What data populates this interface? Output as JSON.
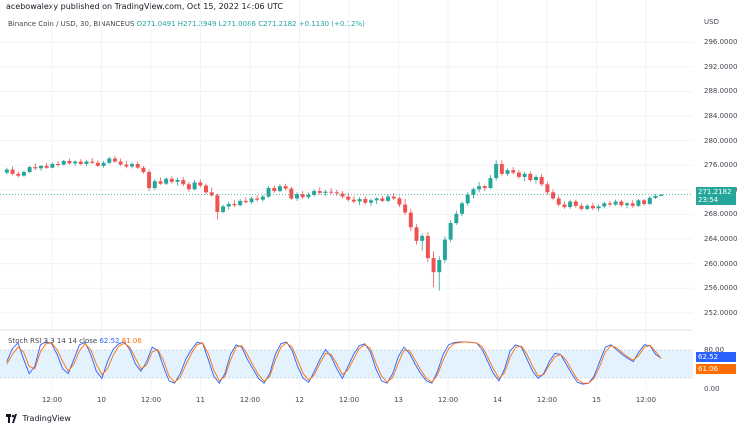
{
  "header": {
    "published_note": "acebowalexy published on TradingView.com, Oct 15, 2022 14:06 UTC",
    "symbol": "Binance Coin / USD, 30, BINANCEUS",
    "ohlc": "O271.0491 H271.2949 L271.0086 C271.2182 +0.1130 (+0.12%)"
  },
  "price_axis": {
    "currency": "USD",
    "ticks": [
      "296.0000",
      "292.0000",
      "288.0000",
      "284.0000",
      "280.0000",
      "276.0000",
      "272.0000",
      "268.0000",
      "264.0000",
      "260.0000",
      "256.0000",
      "252.0000"
    ],
    "current_price": "271.2182",
    "countdown": "23:54",
    "colors": {
      "badge": "#26a69a"
    }
  },
  "time_axis": {
    "labels": [
      "12:00",
      "10",
      "12:00",
      "11",
      "12:00",
      "12",
      "12:00",
      "13",
      "12:00",
      "14",
      "12:00",
      "15",
      "12:00"
    ]
  },
  "stoch": {
    "label": "Stoch RSI 3 3 14 14 close",
    "k_value": "62.52",
    "d_value": "61.06",
    "ticks": [
      "80.00",
      "0.00"
    ],
    "colors": {
      "k": "#2962ff",
      "d": "#ff6d00",
      "band": "#e3f2fd"
    }
  },
  "footer": {
    "brand": "TradingView",
    "logo_icon": "tradingview-logo-icon"
  },
  "chart_data": [
    {
      "type": "candlestick",
      "ylim": [
        250.5,
        298
      ],
      "candles": [
        [
          274.8,
          275.6,
          274.5,
          275.3
        ],
        [
          275.3,
          275.8,
          274.4,
          274.6
        ],
        [
          274.6,
          275.0,
          274.0,
          274.3
        ],
        [
          274.3,
          275.1,
          274.1,
          274.9
        ],
        [
          274.9,
          275.9,
          274.7,
          275.7
        ],
        [
          275.7,
          276.3,
          275.2,
          275.5
        ],
        [
          275.5,
          276.0,
          275.1,
          275.9
        ],
        [
          275.9,
          276.4,
          275.4,
          275.6
        ],
        [
          275.6,
          276.5,
          275.5,
          276.2
        ],
        [
          276.2,
          276.7,
          275.8,
          276.1
        ],
        [
          276.1,
          276.9,
          276.0,
          276.7
        ],
        [
          276.7,
          277.1,
          276.1,
          276.3
        ],
        [
          276.3,
          276.8,
          275.9,
          276.6
        ],
        [
          276.6,
          277.0,
          276.0,
          276.2
        ],
        [
          276.2,
          276.9,
          275.9,
          276.6
        ],
        [
          276.6,
          277.2,
          276.2,
          276.4
        ],
        [
          276.4,
          276.8,
          275.7,
          275.9
        ],
        [
          275.9,
          276.7,
          275.6,
          276.4
        ],
        [
          276.4,
          277.4,
          276.2,
          277.1
        ],
        [
          277.1,
          277.5,
          276.4,
          276.6
        ],
        [
          276.6,
          277.1,
          275.9,
          276.1
        ],
        [
          276.1,
          276.7,
          275.5,
          275.8
        ],
        [
          275.8,
          276.5,
          275.5,
          276.2
        ],
        [
          276.2,
          276.6,
          275.4,
          275.6
        ],
        [
          275.6,
          275.9,
          274.6,
          274.9
        ],
        [
          274.9,
          275.3,
          271.8,
          272.3
        ],
        [
          272.3,
          273.7,
          272.0,
          273.4
        ],
        [
          273.4,
          274.0,
          272.8,
          273.0
        ],
        [
          273.0,
          274.1,
          272.8,
          273.8
        ],
        [
          273.8,
          274.2,
          273.0,
          273.3
        ],
        [
          273.3,
          274.0,
          272.7,
          273.6
        ],
        [
          273.6,
          274.1,
          272.6,
          272.9
        ],
        [
          272.9,
          273.3,
          271.7,
          272.1
        ],
        [
          272.1,
          273.6,
          271.9,
          273.2
        ],
        [
          273.2,
          273.7,
          272.4,
          272.7
        ],
        [
          272.7,
          273.0,
          271.3,
          271.6
        ],
        [
          271.6,
          272.4,
          270.9,
          271.1
        ],
        [
          271.1,
          271.4,
          267.2,
          268.4
        ],
        [
          268.4,
          269.6,
          268.2,
          269.3
        ],
        [
          269.3,
          270.1,
          268.8,
          269.7
        ],
        [
          269.7,
          270.3,
          269.2,
          269.5
        ],
        [
          269.5,
          270.5,
          269.3,
          270.2
        ],
        [
          270.2,
          270.8,
          269.8,
          270.0
        ],
        [
          270.0,
          270.9,
          269.7,
          270.6
        ],
        [
          270.6,
          271.1,
          270.1,
          270.4
        ],
        [
          270.4,
          271.2,
          270.1,
          270.9
        ],
        [
          270.9,
          272.6,
          270.7,
          272.3
        ],
        [
          272.3,
          272.7,
          271.5,
          271.8
        ],
        [
          271.8,
          272.9,
          271.6,
          272.6
        ],
        [
          272.6,
          273.0,
          271.9,
          272.2
        ],
        [
          272.2,
          272.5,
          270.3,
          270.6
        ],
        [
          270.6,
          271.6,
          270.2,
          271.3
        ],
        [
          271.3,
          271.8,
          270.5,
          270.8
        ],
        [
          270.8,
          271.6,
          270.5,
          271.2
        ],
        [
          271.2,
          272.1,
          270.9,
          271.8
        ],
        [
          271.8,
          272.4,
          271.2,
          271.5
        ],
        [
          271.5,
          272.0,
          271.0,
          271.7
        ],
        [
          271.7,
          272.3,
          271.3,
          271.6
        ],
        [
          271.6,
          272.0,
          271.0,
          271.4
        ],
        [
          271.4,
          271.8,
          270.6,
          270.9
        ],
        [
          270.9,
          271.5,
          270.1,
          270.4
        ],
        [
          270.4,
          271.0,
          269.8,
          270.1
        ],
        [
          270.1,
          270.8,
          269.5,
          270.5
        ],
        [
          270.5,
          271.0,
          269.6,
          269.9
        ],
        [
          269.9,
          270.6,
          269.4,
          270.3
        ],
        [
          270.3,
          270.8,
          269.7,
          270.6
        ],
        [
          270.6,
          271.0,
          270.0,
          270.2
        ],
        [
          270.2,
          271.3,
          270.0,
          270.9
        ],
        [
          270.9,
          271.5,
          270.3,
          270.6
        ],
        [
          270.6,
          270.9,
          269.2,
          269.6
        ],
        [
          269.6,
          270.5,
          267.9,
          268.3
        ],
        [
          268.3,
          268.9,
          265.3,
          265.9
        ],
        [
          265.9,
          266.4,
          263.1,
          263.7
        ],
        [
          263.7,
          264.9,
          262.1,
          264.5
        ],
        [
          264.5,
          265.1,
          260.2,
          260.9
        ],
        [
          260.9,
          262.0,
          256.2,
          258.6
        ],
        [
          258.6,
          261.2,
          255.6,
          260.6
        ],
        [
          260.6,
          264.4,
          260.1,
          263.9
        ],
        [
          263.9,
          267.1,
          263.5,
          266.6
        ],
        [
          266.6,
          268.6,
          266.3,
          268.1
        ],
        [
          268.1,
          270.1,
          267.7,
          269.8
        ],
        [
          269.8,
          271.6,
          269.4,
          271.2
        ],
        [
          271.2,
          272.4,
          270.6,
          272.1
        ],
        [
          272.1,
          273.3,
          271.6,
          272.6
        ],
        [
          272.6,
          272.8,
          271.8,
          272.3
        ],
        [
          272.3,
          274.4,
          272.1,
          273.9
        ],
        [
          273.9,
          276.8,
          273.5,
          276.2
        ],
        [
          276.2,
          276.8,
          274.3,
          274.6
        ],
        [
          274.6,
          275.5,
          274.2,
          275.2
        ],
        [
          275.2,
          275.7,
          274.5,
          274.8
        ],
        [
          274.8,
          275.2,
          273.8,
          274.1
        ],
        [
          274.1,
          274.9,
          273.4,
          274.6
        ],
        [
          274.6,
          275.0,
          273.3,
          273.6
        ],
        [
          273.6,
          274.4,
          273.0,
          274.1
        ],
        [
          274.1,
          274.6,
          272.6,
          272.9
        ],
        [
          272.9,
          273.3,
          271.2,
          271.6
        ],
        [
          271.6,
          272.1,
          270.3,
          270.6
        ],
        [
          270.6,
          271.0,
          269.3,
          269.6
        ],
        [
          269.6,
          270.1,
          268.9,
          269.2
        ],
        [
          269.2,
          270.4,
          268.9,
          270.1
        ],
        [
          270.1,
          270.4,
          269.1,
          269.4
        ],
        [
          269.4,
          269.8,
          268.6,
          268.9
        ],
        [
          268.9,
          269.7,
          268.7,
          269.4
        ],
        [
          269.4,
          269.9,
          268.7,
          269.0
        ],
        [
          269.0,
          269.6,
          268.5,
          269.3
        ],
        [
          269.3,
          270.1,
          269.0,
          269.8
        ],
        [
          269.8,
          270.2,
          269.3,
          269.6
        ],
        [
          269.6,
          270.4,
          269.4,
          270.1
        ],
        [
          270.1,
          270.4,
          269.2,
          269.5
        ],
        [
          269.5,
          270.0,
          269.0,
          269.8
        ],
        [
          269.8,
          270.3,
          269.1,
          269.4
        ],
        [
          269.4,
          270.5,
          269.2,
          270.3
        ],
        [
          270.3,
          270.5,
          269.4,
          269.7
        ],
        [
          269.7,
          271.0,
          269.5,
          270.7
        ],
        [
          270.7,
          271.3,
          270.5,
          271.0
        ],
        [
          271.0,
          271.3,
          271.0,
          271.2
        ]
      ]
    },
    {
      "type": "line",
      "title": "Stoch RSI",
      "ylim": [
        0,
        100
      ],
      "series": [
        {
          "name": "K",
          "values": [
            55,
            82,
            94,
            60,
            30,
            45,
            90,
            96,
            93,
            70,
            40,
            30,
            60,
            90,
            95,
            70,
            35,
            20,
            55,
            80,
            92,
            96,
            80,
            50,
            35,
            55,
            85,
            78,
            45,
            15,
            10,
            30,
            60,
            80,
            95,
            93,
            60,
            25,
            10,
            30,
            70,
            90,
            85,
            60,
            40,
            20,
            10,
            30,
            70,
            92,
            96,
            78,
            45,
            20,
            12,
            35,
            60,
            80,
            65,
            40,
            20,
            45,
            70,
            88,
            92,
            75,
            40,
            15,
            10,
            30,
            65,
            85,
            72,
            50,
            30,
            15,
            10,
            35,
            70,
            90,
            95,
            96,
            96,
            95,
            94,
            80,
            55,
            30,
            15,
            40,
            78,
            90,
            85,
            60,
            35,
            20,
            30,
            55,
            72,
            70,
            50,
            30,
            12,
            8,
            10,
            25,
            55,
            85,
            90,
            80,
            70,
            62,
            55,
            75,
            90,
            88,
            70,
            62
          ]
        },
        {
          "name": "D",
          "values": [
            50,
            70,
            85,
            75,
            45,
            40,
            75,
            92,
            94,
            80,
            55,
            35,
            50,
            78,
            92,
            80,
            50,
            28,
            40,
            68,
            87,
            93,
            85,
            62,
            40,
            48,
            75,
            80,
            58,
            25,
            12,
            22,
            48,
            72,
            90,
            94,
            72,
            38,
            15,
            24,
            58,
            85,
            88,
            70,
            48,
            28,
            14,
            24,
            58,
            85,
            94,
            85,
            58,
            30,
            16,
            28,
            52,
            72,
            70,
            50,
            28,
            38,
            60,
            82,
            90,
            82,
            52,
            25,
            12,
            22,
            52,
            78,
            78,
            58,
            38,
            20,
            12,
            28,
            58,
            82,
            93,
            95,
            96,
            95,
            94,
            86,
            64,
            40,
            20,
            32,
            65,
            85,
            87,
            70,
            45,
            25,
            28,
            48,
            65,
            70,
            58,
            38,
            18,
            10,
            10,
            20,
            45,
            75,
            88,
            84,
            74,
            65,
            58,
            68,
            85,
            89,
            76,
            61
          ]
        }
      ]
    }
  ]
}
